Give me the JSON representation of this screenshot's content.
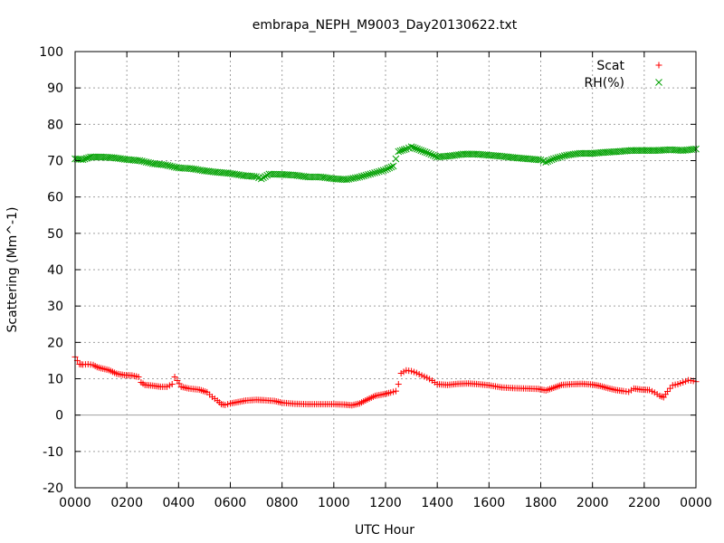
{
  "chart_data": {
    "type": "scatter",
    "title": "embrapa_NEPH_M9003_Day20130622.txt",
    "xlabel": "UTC Hour",
    "ylabel": "Scattering (Mm^-1)",
    "xlim": [
      0,
      24
    ],
    "ylim": [
      -20,
      100
    ],
    "x_ticks": [
      0,
      2,
      4,
      6,
      8,
      10,
      12,
      14,
      16,
      18,
      20,
      22,
      24
    ],
    "x_tick_labels": [
      "0000",
      "0200",
      "0400",
      "0600",
      "0800",
      "1000",
      "1200",
      "1400",
      "1600",
      "1800",
      "2000",
      "2200",
      "0000"
    ],
    "y_ticks": [
      -20,
      -10,
      0,
      10,
      20,
      30,
      40,
      50,
      60,
      70,
      80,
      90,
      100
    ],
    "y_tick_labels": [
      "-20",
      "-10",
      "0",
      "10",
      "20",
      "30",
      "40",
      "50",
      "60",
      "70",
      "80",
      "90",
      "100"
    ],
    "grid": true,
    "zero_line": true,
    "legend_position": "top-right",
    "series": [
      {
        "name": "Scat",
        "marker": "plus",
        "color": "#ff0000",
        "points": [
          [
            0.0,
            16.0
          ],
          [
            0.17,
            14.0
          ],
          [
            0.3,
            13.9
          ],
          [
            0.5,
            14.0
          ],
          [
            0.7,
            13.8
          ],
          [
            0.85,
            13.2
          ],
          [
            1.0,
            12.9
          ],
          [
            1.3,
            12.4
          ],
          [
            1.6,
            11.4
          ],
          [
            1.9,
            11.0
          ],
          [
            2.2,
            10.9
          ],
          [
            2.45,
            10.5
          ],
          [
            2.55,
            9.0
          ],
          [
            2.7,
            8.3
          ],
          [
            3.0,
            8.1
          ],
          [
            3.3,
            7.8
          ],
          [
            3.55,
            7.8
          ],
          [
            3.75,
            8.5
          ],
          [
            3.85,
            10.5
          ],
          [
            3.95,
            9.5
          ],
          [
            4.1,
            7.8
          ],
          [
            4.4,
            7.3
          ],
          [
            4.8,
            7.0
          ],
          [
            5.1,
            6.3
          ],
          [
            5.3,
            5.0
          ],
          [
            5.5,
            4.0
          ],
          [
            5.65,
            3.0
          ],
          [
            5.8,
            2.8
          ],
          [
            6.0,
            3.2
          ],
          [
            6.3,
            3.6
          ],
          [
            6.6,
            4.0
          ],
          [
            7.0,
            4.2
          ],
          [
            7.3,
            4.1
          ],
          [
            7.7,
            3.9
          ],
          [
            8.0,
            3.4
          ],
          [
            8.5,
            3.1
          ],
          [
            9.0,
            3.0
          ],
          [
            9.5,
            3.0
          ],
          [
            10.0,
            3.0
          ],
          [
            10.4,
            2.9
          ],
          [
            10.7,
            2.7
          ],
          [
            11.0,
            3.2
          ],
          [
            11.3,
            4.3
          ],
          [
            11.6,
            5.3
          ],
          [
            11.9,
            5.7
          ],
          [
            12.2,
            6.2
          ],
          [
            12.4,
            6.6
          ],
          [
            12.5,
            8.5
          ],
          [
            12.6,
            11.5
          ],
          [
            12.8,
            12.3
          ],
          [
            13.0,
            12.1
          ],
          [
            13.2,
            11.6
          ],
          [
            13.4,
            10.9
          ],
          [
            13.6,
            10.3
          ],
          [
            13.8,
            9.5
          ],
          [
            14.0,
            8.5
          ],
          [
            14.4,
            8.3
          ],
          [
            14.8,
            8.6
          ],
          [
            15.2,
            8.7
          ],
          [
            15.6,
            8.5
          ],
          [
            16.0,
            8.2
          ],
          [
            16.5,
            7.6
          ],
          [
            17.0,
            7.4
          ],
          [
            17.5,
            7.3
          ],
          [
            17.9,
            7.2
          ],
          [
            18.2,
            6.8
          ],
          [
            18.5,
            7.5
          ],
          [
            18.8,
            8.3
          ],
          [
            19.2,
            8.5
          ],
          [
            19.6,
            8.6
          ],
          [
            20.0,
            8.4
          ],
          [
            20.3,
            8.0
          ],
          [
            20.6,
            7.4
          ],
          [
            20.9,
            6.9
          ],
          [
            21.2,
            6.6
          ],
          [
            21.4,
            6.4
          ],
          [
            21.6,
            7.3
          ],
          [
            21.9,
            7.0
          ],
          [
            22.2,
            6.9
          ],
          [
            22.4,
            6.2
          ],
          [
            22.6,
            5.3
          ],
          [
            22.75,
            4.9
          ],
          [
            22.9,
            6.5
          ],
          [
            23.1,
            8.2
          ],
          [
            23.3,
            8.5
          ],
          [
            23.5,
            9.0
          ],
          [
            23.7,
            9.6
          ],
          [
            23.9,
            9.4
          ],
          [
            24.0,
            9.2
          ]
        ]
      },
      {
        "name": "RH(%)",
        "marker": "cross",
        "color": "#00a000",
        "points": [
          [
            0.0,
            70.5
          ],
          [
            0.3,
            70.3
          ],
          [
            0.6,
            71.0
          ],
          [
            1.0,
            71.0
          ],
          [
            1.5,
            70.8
          ],
          [
            2.0,
            70.3
          ],
          [
            2.5,
            70.0
          ],
          [
            3.0,
            69.2
          ],
          [
            3.5,
            68.8
          ],
          [
            4.0,
            68.0
          ],
          [
            4.5,
            67.8
          ],
          [
            5.0,
            67.2
          ],
          [
            5.5,
            66.8
          ],
          [
            6.0,
            66.5
          ],
          [
            6.5,
            65.9
          ],
          [
            7.0,
            65.6
          ],
          [
            7.2,
            65.0
          ],
          [
            7.5,
            66.3
          ],
          [
            8.0,
            66.2
          ],
          [
            8.5,
            66.0
          ],
          [
            9.0,
            65.5
          ],
          [
            9.5,
            65.5
          ],
          [
            10.0,
            65.0
          ],
          [
            10.5,
            64.8
          ],
          [
            11.0,
            65.5
          ],
          [
            11.5,
            66.5
          ],
          [
            12.0,
            67.5
          ],
          [
            12.3,
            68.5
          ],
          [
            12.5,
            72.5
          ],
          [
            12.8,
            73.2
          ],
          [
            13.0,
            73.8
          ],
          [
            13.3,
            73.0
          ],
          [
            13.6,
            72.2
          ],
          [
            14.0,
            71.0
          ],
          [
            14.5,
            71.3
          ],
          [
            15.0,
            71.8
          ],
          [
            15.5,
            71.8
          ],
          [
            16.0,
            71.5
          ],
          [
            16.5,
            71.2
          ],
          [
            17.0,
            70.8
          ],
          [
            17.5,
            70.5
          ],
          [
            18.0,
            70.2
          ],
          [
            18.2,
            69.6
          ],
          [
            18.5,
            70.5
          ],
          [
            19.0,
            71.5
          ],
          [
            19.5,
            72.0
          ],
          [
            20.0,
            72.0
          ],
          [
            20.5,
            72.3
          ],
          [
            21.0,
            72.5
          ],
          [
            21.5,
            72.8
          ],
          [
            22.0,
            72.8
          ],
          [
            22.5,
            72.8
          ],
          [
            23.0,
            73.0
          ],
          [
            23.5,
            72.8
          ],
          [
            24.0,
            73.2
          ]
        ]
      }
    ]
  }
}
